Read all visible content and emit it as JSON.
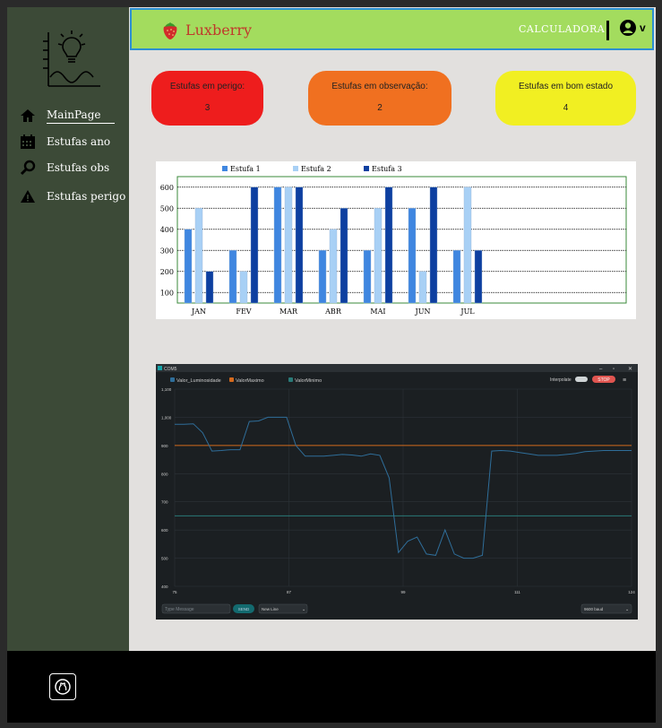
{
  "sidebar": {
    "items": [
      {
        "label": "MainPage",
        "icon": "home-icon"
      },
      {
        "label": "Estufas ano",
        "icon": "calendar-icon"
      },
      {
        "label": "Estufas obs",
        "icon": "search-icon"
      },
      {
        "label": "Estufas perigo",
        "icon": "warning-icon"
      }
    ]
  },
  "header": {
    "brand": "Luxberry",
    "calc_label": "CALCULADORA",
    "user_caret": "v"
  },
  "cards": [
    {
      "title": "Estufas em perigo:",
      "value": "3",
      "color": "#ee1d1d"
    },
    {
      "title": "Estufas em observação:",
      "value": "2",
      "color": "#f07020"
    },
    {
      "title": "Estufas em bom estado",
      "value": "4",
      "color": "#f1ef22"
    }
  ],
  "chart_data": [
    {
      "type": "bar",
      "categories": [
        "JAN",
        "FEV",
        "MAR",
        "ABR",
        "MAI",
        "JUN",
        "JUL"
      ],
      "series": [
        {
          "name": "Estufa 1",
          "values": [
            400,
            300,
            600,
            300,
            300,
            500,
            300
          ],
          "color": "#3f86e0"
        },
        {
          "name": "Estufa 2",
          "values": [
            500,
            200,
            600,
            400,
            500,
            200,
            600
          ],
          "color": "#a8d0f5"
        },
        {
          "name": "Estufa 3",
          "values": [
            200,
            600,
            600,
            500,
            600,
            600,
            300
          ],
          "color": "#0d3fa0"
        }
      ],
      "yticks": [
        100,
        200,
        300,
        400,
        500,
        600
      ],
      "ylim": [
        50,
        650
      ]
    },
    {
      "type": "line",
      "window_title": "COM5",
      "series": [
        {
          "name": "Valor_Luminosidade",
          "color": "#2f6e9a",
          "x": [
            75,
            76,
            77,
            78,
            79,
            80,
            81,
            82,
            83,
            84,
            85,
            86,
            87,
            88,
            89,
            90,
            91,
            92,
            93,
            94,
            95,
            96,
            97,
            98,
            99,
            100,
            101,
            102,
            103,
            104,
            105,
            106,
            107,
            108,
            109,
            110,
            111,
            112,
            113,
            114,
            115,
            116,
            117,
            118,
            119,
            120,
            121,
            122,
            123,
            124
          ],
          "y": [
            975,
            975,
            977,
            945,
            880,
            882,
            885,
            885,
            985,
            987,
            1000,
            1000,
            1000,
            900,
            862,
            862,
            862,
            865,
            868,
            866,
            862,
            870,
            865,
            785,
            520,
            560,
            575,
            515,
            510,
            600,
            515,
            500,
            500,
            510,
            880,
            882,
            880,
            875,
            870,
            865,
            865,
            865,
            868,
            872,
            878,
            880,
            882,
            882,
            882,
            882
          ]
        },
        {
          "name": "ValorMaximo",
          "color": "#d46a1d",
          "x": [
            75,
            124
          ],
          "y": [
            900,
            900
          ]
        },
        {
          "name": "ValorMinimo",
          "color": "#2a7a78",
          "x": [
            75,
            124
          ],
          "y": [
            650,
            650
          ]
        }
      ],
      "yticks": [
        "400",
        "500",
        "600",
        "700",
        "800",
        "900",
        "1,000",
        "1,100"
      ],
      "xticks": [
        "75",
        "87",
        "99",
        "111",
        "124"
      ],
      "ylim": [
        400,
        1100
      ],
      "xlim": [
        75,
        124
      ],
      "interpolate_label": "Interpolate",
      "stop_label": "STOP",
      "message_placeholder": "Type Message",
      "send_label": "SEND",
      "line_ending": "New Line",
      "baud": "9600 baud"
    }
  ]
}
